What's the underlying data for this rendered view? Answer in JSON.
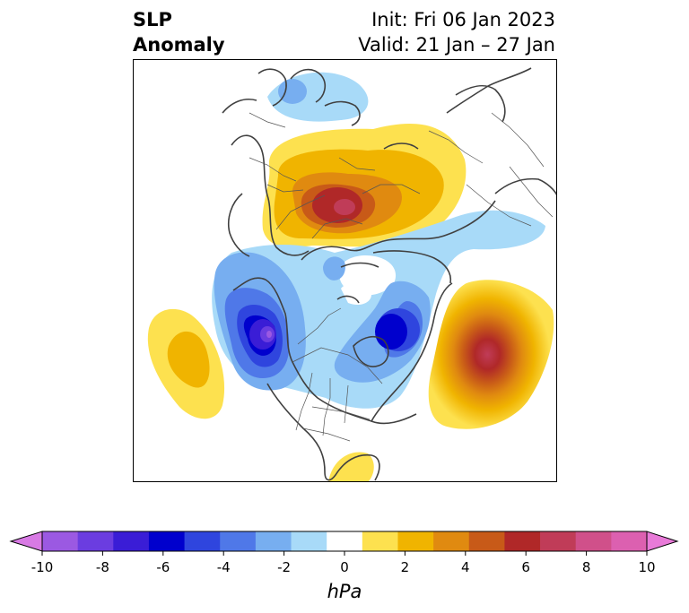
{
  "title": {
    "left_line1": "SLP",
    "left_line2": "Anomaly",
    "right_line1": "Init: Fri 06 Jan 2023",
    "right_line2": "Valid: 21 Jan – 27 Jan"
  },
  "map": {
    "projection": "polar stereographic (Northern Hemisphere)",
    "field": "sea level pressure anomaly",
    "anomaly_centers": [
      {
        "region": "northern Siberia / Arctic Russia",
        "sign": "positive",
        "peak_hpa": 6
      },
      {
        "region": "central North Atlantic",
        "sign": "positive",
        "peak_hpa": 6
      },
      {
        "region": "central North Pacific",
        "sign": "positive",
        "peak_hpa": 2
      },
      {
        "region": "Gulf of Mexico",
        "sign": "positive",
        "peak_hpa": 1
      },
      {
        "region": "Gulf of Alaska / western Canada",
        "sign": "negative",
        "peak_hpa": -9
      },
      {
        "region": "Hudson Bay / Labrador Sea",
        "sign": "negative",
        "peak_hpa": -6
      },
      {
        "region": "Arctic Ocean",
        "sign": "negative",
        "peak_hpa": -3
      },
      {
        "region": "Scandinavia / Barents Sea",
        "sign": "negative",
        "peak_hpa": -2
      }
    ]
  },
  "colorbar": {
    "ticks": [
      "-10",
      "-8",
      "-6",
      "-4",
      "-2",
      "0",
      "2",
      "4",
      "6",
      "8",
      "10"
    ],
    "label": "hPa",
    "colors": [
      "#9b59e2",
      "#6b3de0",
      "#3a1dd6",
      "#0000cd",
      "#2f45de",
      "#4f78e8",
      "#77aef0",
      "#a8daf8",
      "#ffffff",
      "#fde14f",
      "#f0b400",
      "#e08a10",
      "#c85a18",
      "#b02828",
      "#c03c58",
      "#d0508a",
      "#dc60b0"
    ],
    "extend_min_color": "#d87ae4",
    "extend_max_color": "#e87ad8"
  }
}
